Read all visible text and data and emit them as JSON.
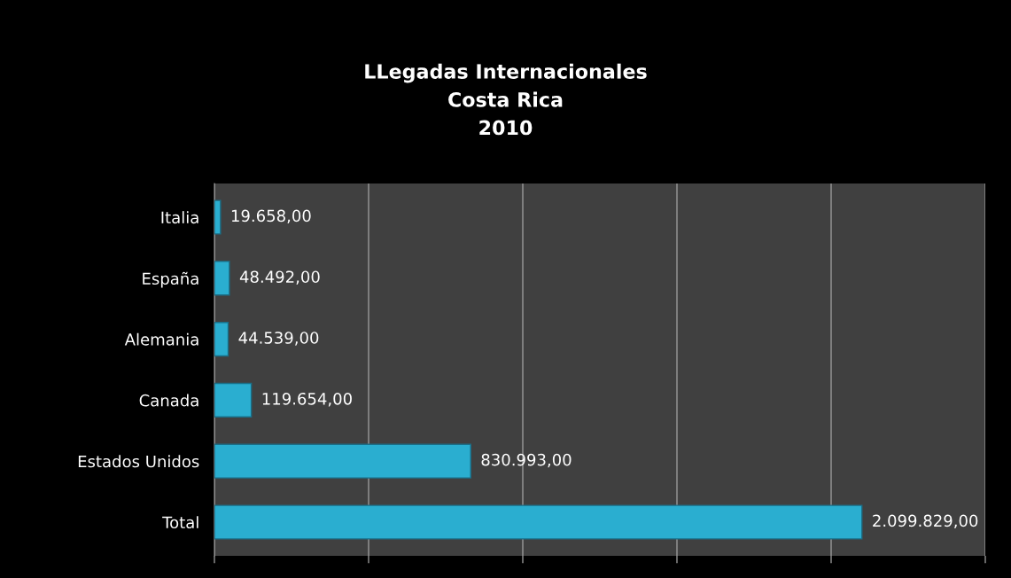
{
  "chart_data": {
    "type": "bar",
    "orientation": "horizontal",
    "title": "LLegadas Internacionales\nCosta Rica\n2010",
    "categories": [
      "Italia",
      "España",
      "Alemania",
      "Canada",
      "Estados Unidos",
      "Total"
    ],
    "values": [
      19658,
      48492,
      44539,
      119654,
      830993,
      2099829
    ],
    "value_labels": [
      "19.658,00",
      "48.492,00",
      "44.539,00",
      "119.654,00",
      "830.993,00",
      "2.099.829,00"
    ],
    "color": "#2aaed0",
    "xlim": [
      0,
      2500000
    ],
    "xticks": [
      {
        "value": 0,
        "label": null
      },
      {
        "value": 500000,
        "label": null
      },
      {
        "value": 1000000,
        "label": null
      },
      {
        "value": 1500000,
        "label": null
      },
      {
        "value": 2000000,
        "label": null
      },
      {
        "value": 2500000,
        "label": null
      }
    ],
    "tick_labels": "y",
    "grid": "x",
    "legend": false
  }
}
